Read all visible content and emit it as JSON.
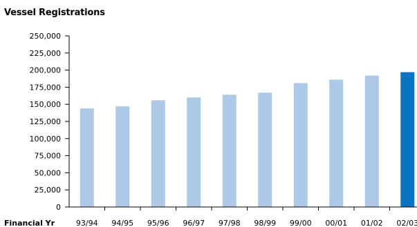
{
  "colors": {
    "bar": "#aec8e8",
    "highlight": "#0a73c2",
    "axis": "#000000",
    "text": "#000000",
    "background": "#ffffff"
  },
  "chart_data": {
    "type": "bar",
    "title": "Vessel Registrations",
    "xlabel": "Financial Yr",
    "ylabel": "",
    "grid": false,
    "categories": [
      "93/94",
      "94/95",
      "95/96",
      "96/97",
      "97/98",
      "98/99",
      "99/00",
      "00/01",
      "01/02",
      "02/03"
    ],
    "values": [
      144000,
      147000,
      156000,
      160000,
      164000,
      167000,
      181000,
      186000,
      192000,
      197000
    ],
    "highlight_index": 9,
    "ylim": [
      0,
      250000
    ],
    "yticks": [
      0,
      25000,
      50000,
      75000,
      100000,
      125000,
      150000,
      175000,
      200000,
      225000,
      250000
    ],
    "ytick_labels": [
      "0",
      "25,000",
      "50,000",
      "75,000",
      "100,000",
      "125,000",
      "150,000",
      "175,000",
      "200,000",
      "225,000",
      "250,000"
    ]
  }
}
